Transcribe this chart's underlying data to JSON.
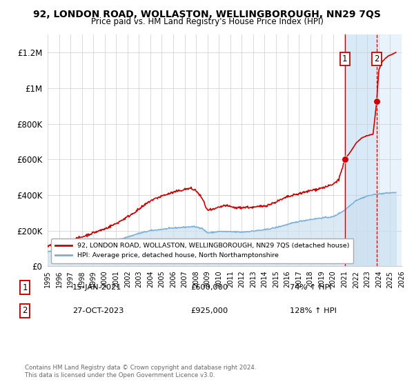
{
  "title": "92, LONDON ROAD, WOLLASTON, WELLINGBOROUGH, NN29 7QS",
  "subtitle": "Price paid vs. HM Land Registry's House Price Index (HPI)",
  "legend_line1": "92, LONDON ROAD, WOLLASTON, WELLINGBOROUGH, NN29 7QS (detached house)",
  "legend_line2": "HPI: Average price, detached house, North Northamptonshire",
  "footer": "Contains HM Land Registry data © Crown copyright and database right 2024.\nThis data is licensed under the Open Government Licence v3.0.",
  "sale1_label": "1",
  "sale1_date": "15-JAN-2021",
  "sale1_price": "£600,000",
  "sale1_hpi": "74% ↑ HPI",
  "sale2_label": "2",
  "sale2_date": "27-OCT-2023",
  "sale2_price": "£925,000",
  "sale2_hpi": "128% ↑ HPI",
  "red_color": "#cc0000",
  "blue_color": "#7aaed6",
  "blue_fill_color": "#cce0f0",
  "shade_color": "#d8eaf8",
  "sale_dot_color": "#cc0000",
  "background_color": "#ffffff",
  "grid_color": "#cccccc",
  "sale1_year": 2021.04,
  "sale2_year": 2023.82,
  "sale1_price_val": 600000,
  "sale2_price_val": 925000,
  "xmin": 1995,
  "xmax": 2026,
  "ymin": 0,
  "ymax": 1300000,
  "yticks": [
    0,
    200000,
    400000,
    600000,
    800000,
    1000000,
    1200000
  ],
  "ytick_labels": [
    "£0",
    "£200K",
    "£400K",
    "£600K",
    "£800K",
    "£1M",
    "£1.2M"
  ],
  "xticks": [
    1995,
    1996,
    1997,
    1998,
    1999,
    2000,
    2001,
    2002,
    2003,
    2004,
    2005,
    2006,
    2007,
    2008,
    2009,
    2010,
    2011,
    2012,
    2013,
    2014,
    2015,
    2016,
    2017,
    2018,
    2019,
    2020,
    2021,
    2022,
    2023,
    2024,
    2025,
    2026
  ]
}
